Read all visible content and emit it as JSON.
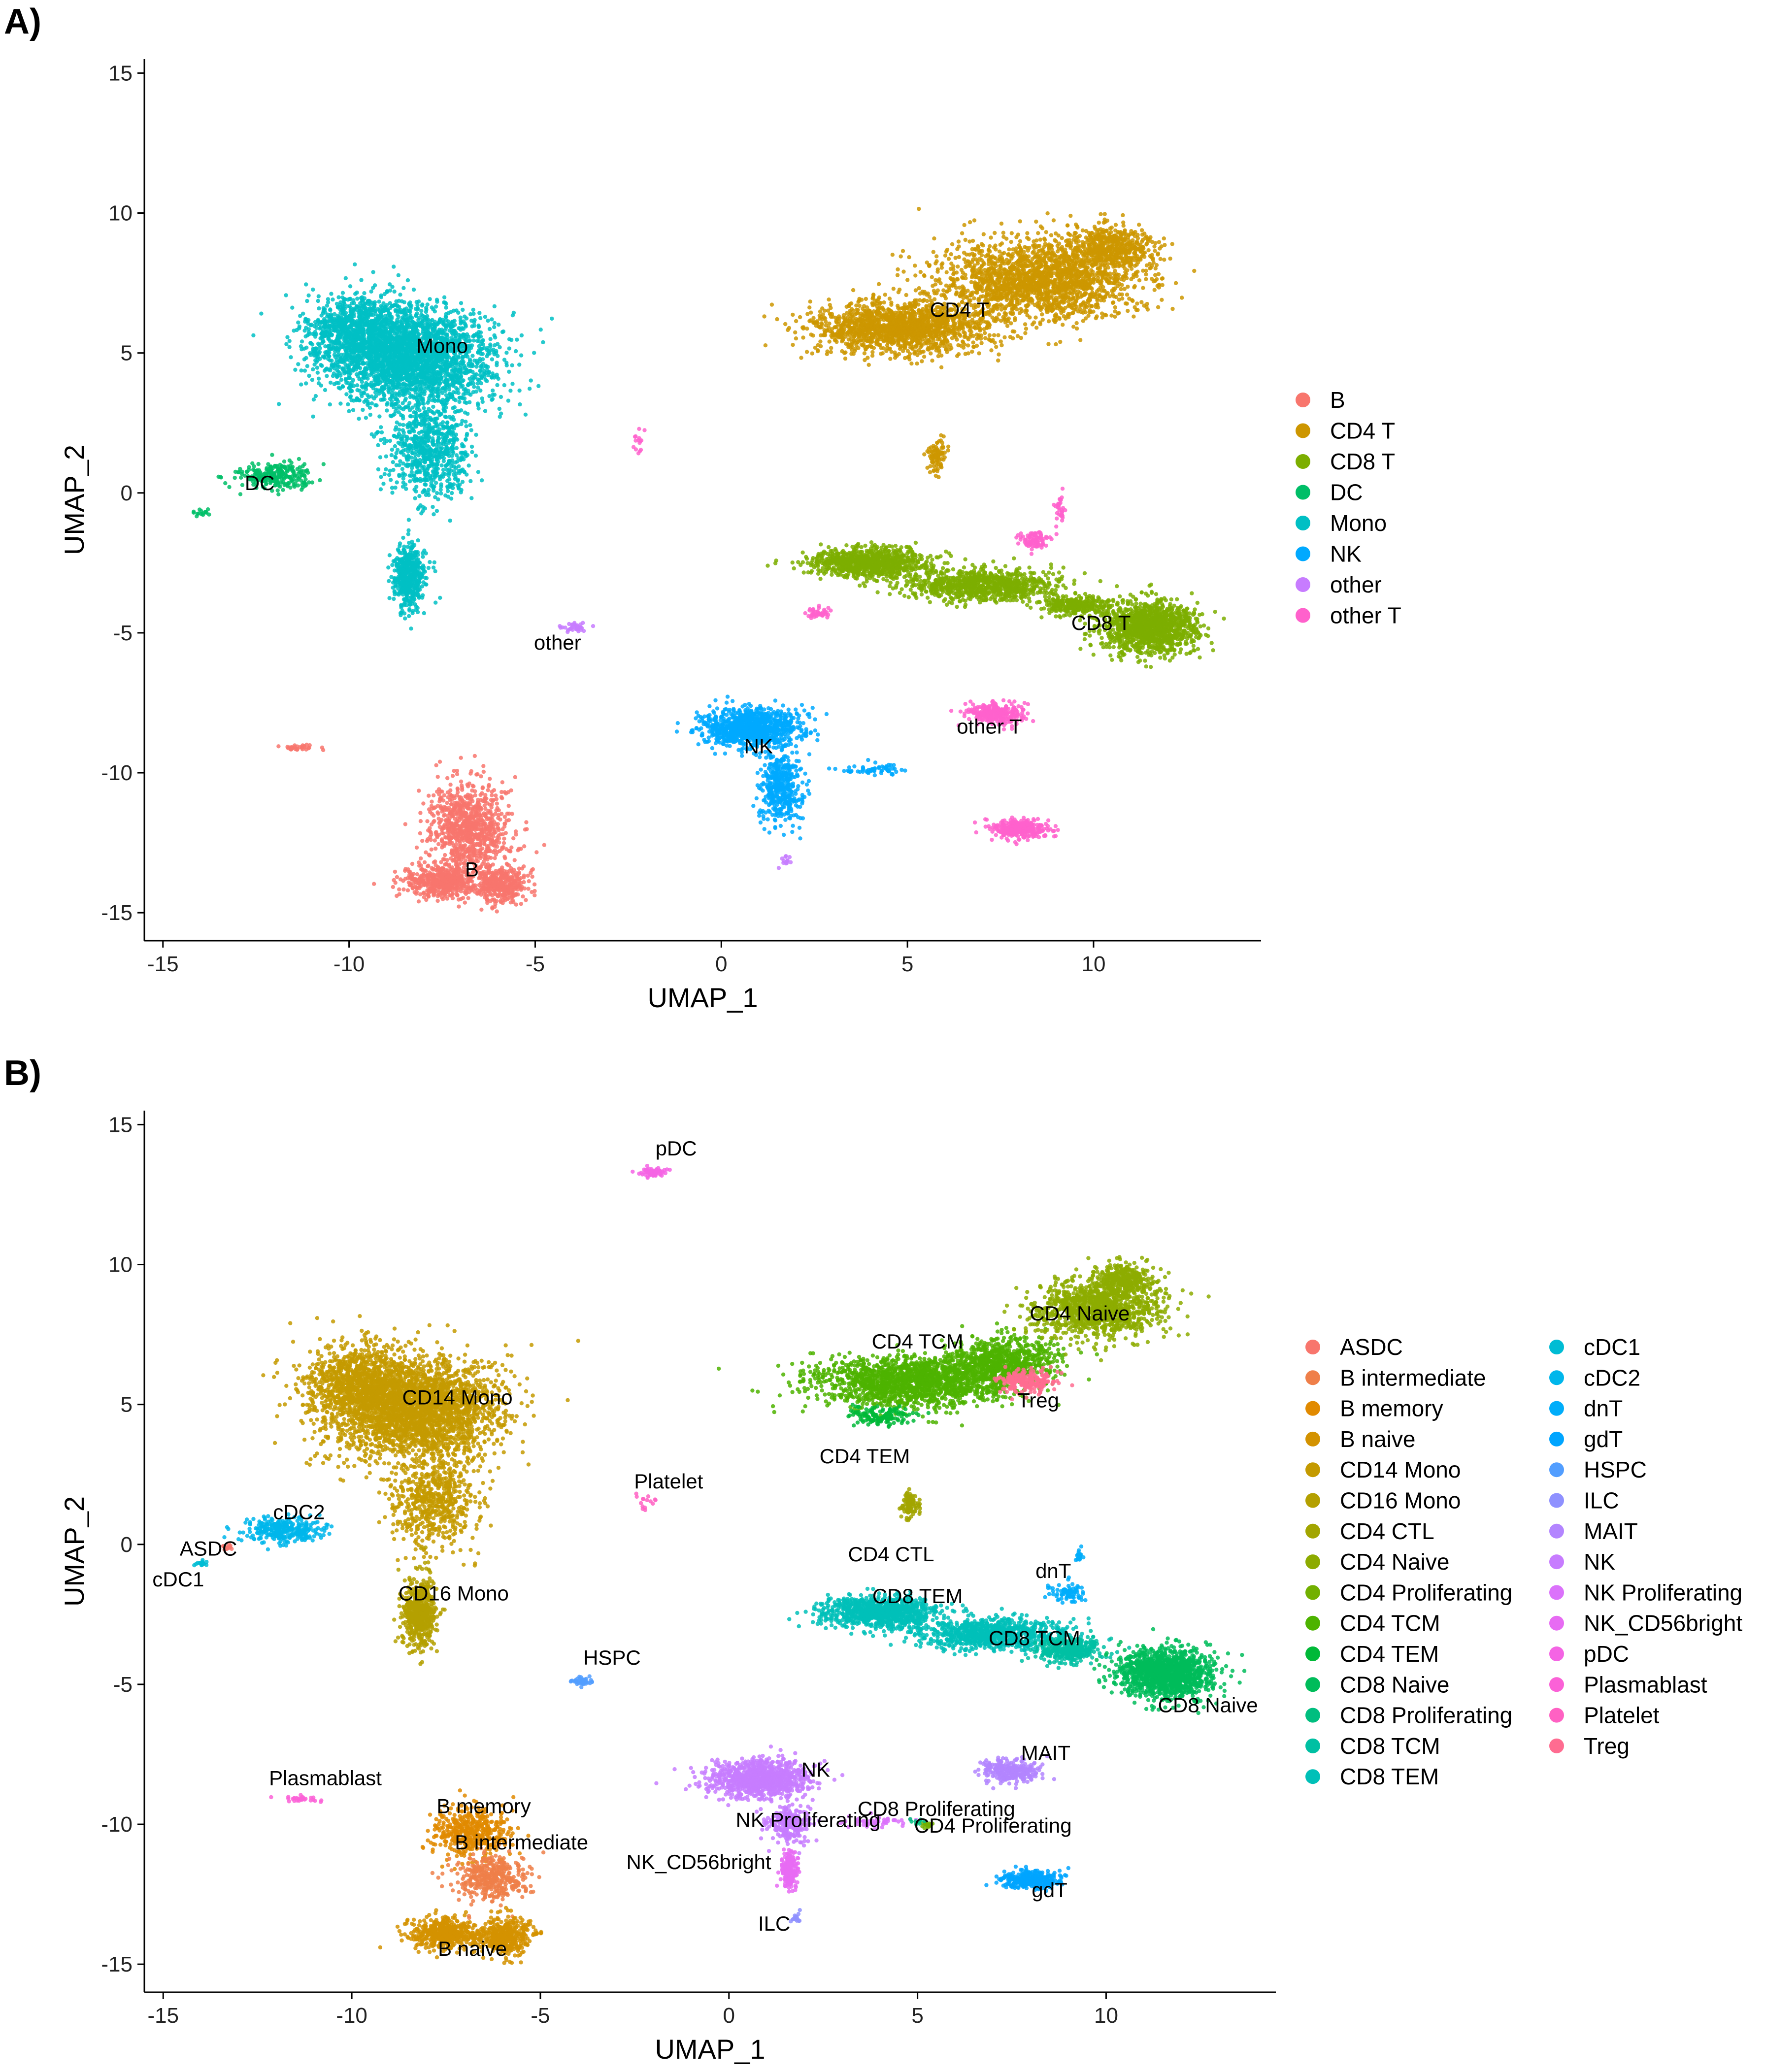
{
  "chart_data": [
    {
      "panel": "A)",
      "type": "scatter",
      "title": "",
      "xlabel": "UMAP_1",
      "ylabel": "UMAP_2",
      "xlim": [
        -15.5,
        14.5
      ],
      "ylim": [
        -16,
        15.5
      ],
      "xticks": [
        -15,
        -10,
        -5,
        0,
        5,
        10
      ],
      "yticks": [
        -15,
        -10,
        -5,
        0,
        5,
        10,
        15
      ],
      "grid": false,
      "legend_position": "right",
      "legend": [
        {
          "label": "B",
          "color": "#F8766D"
        },
        {
          "label": "CD4 T",
          "color": "#CD9600"
        },
        {
          "label": "CD8 T",
          "color": "#7CAE00"
        },
        {
          "label": "DC",
          "color": "#00BE67"
        },
        {
          "label": "Mono",
          "color": "#00BFC4"
        },
        {
          "label": "NK",
          "color": "#00A9FF"
        },
        {
          "label": "other",
          "color": "#C77CFF"
        },
        {
          "label": "other T",
          "color": "#FF61CC"
        }
      ],
      "cluster_labels": [
        {
          "text": "Mono",
          "x": -7.5,
          "y": 5.0
        },
        {
          "text": "DC",
          "x": -12.4,
          "y": 0.1
        },
        {
          "text": "CD4 T",
          "x": 6.4,
          "y": 6.3
        },
        {
          "text": "CD8 T",
          "x": 10.2,
          "y": -4.9
        },
        {
          "text": "other",
          "x": -4.4,
          "y": -5.6
        },
        {
          "text": "NK",
          "x": 1.0,
          "y": -9.3
        },
        {
          "text": "other T",
          "x": 7.2,
          "y": -8.6
        },
        {
          "text": "B",
          "x": -6.7,
          "y": -13.7
        }
      ],
      "clusters": [
        {
          "group": "Mono",
          "color": "#00BFC4",
          "blobs": [
            [
              -8.3,
              4.8,
              2.0,
              1.6,
              2600
            ],
            [
              -9.8,
              5.8,
              1.3,
              1.2,
              900
            ],
            [
              -7.8,
              1.5,
              1.0,
              1.5,
              700
            ],
            [
              -8.4,
              -3.0,
              0.4,
              1.0,
              500
            ]
          ]
        },
        {
          "group": "DC",
          "color": "#00BE67",
          "blobs": [
            [
              -12.0,
              0.6,
              0.9,
              0.4,
              260
            ],
            [
              -14.0,
              -0.7,
              0.2,
              0.1,
              15
            ]
          ]
        },
        {
          "group": "CD4 T",
          "color": "#CD9600",
          "blobs": [
            [
              4.8,
              5.9,
              2.2,
              0.8,
              1600
            ],
            [
              8.5,
              7.6,
              2.4,
              1.3,
              2000
            ],
            [
              10.5,
              8.8,
              1.0,
              0.7,
              500
            ],
            [
              5.8,
              1.3,
              0.2,
              0.5,
              90
            ]
          ]
        },
        {
          "group": "CD8 T",
          "color": "#7CAE00",
          "blobs": [
            [
              4.0,
              -2.5,
              1.4,
              0.5,
              900
            ],
            [
              7.0,
              -3.3,
              1.8,
              0.5,
              900
            ],
            [
              11.5,
              -4.8,
              1.1,
              0.8,
              1300
            ],
            [
              9.5,
              -4.0,
              0.8,
              0.3,
              300
            ]
          ]
        },
        {
          "group": "other T",
          "color": "#FF61CC",
          "blobs": [
            [
              7.4,
              -7.9,
              0.7,
              0.35,
              280
            ],
            [
              8.0,
              -12.0,
              0.7,
              0.3,
              320
            ],
            [
              8.4,
              -1.7,
              0.4,
              0.3,
              90
            ],
            [
              9.1,
              -0.6,
              0.1,
              0.6,
              30
            ],
            [
              2.6,
              -4.3,
              0.3,
              0.2,
              40
            ],
            [
              -2.2,
              1.8,
              0.2,
              0.4,
              15
            ]
          ]
        },
        {
          "group": "NK",
          "color": "#00A9FF",
          "blobs": [
            [
              0.8,
              -8.4,
              1.2,
              0.6,
              1000
            ],
            [
              1.6,
              -10.5,
              0.5,
              1.1,
              450
            ],
            [
              4.0,
              -9.9,
              0.8,
              0.2,
              60
            ]
          ]
        },
        {
          "group": "other",
          "color": "#C77CFF",
          "blobs": [
            [
              -3.9,
              -4.8,
              0.3,
              0.15,
              40
            ],
            [
              1.7,
              -13.1,
              0.1,
              0.2,
              12
            ]
          ]
        },
        {
          "group": "B",
          "color": "#F8766D",
          "blobs": [
            [
              -6.8,
              -12.0,
              1.0,
              1.5,
              900
            ],
            [
              -7.5,
              -13.9,
              0.9,
              0.5,
              500
            ],
            [
              -5.9,
              -14.0,
              0.6,
              0.6,
              400
            ],
            [
              -11.3,
              -9.1,
              0.5,
              0.1,
              30
            ]
          ]
        }
      ]
    },
    {
      "panel": "B)",
      "type": "scatter",
      "title": "",
      "xlabel": "UMAP_1",
      "ylabel": "UMAP_2",
      "xlim": [
        -15.5,
        14.5
      ],
      "ylim": [
        -16,
        15.5
      ],
      "xticks": [
        -15,
        -10,
        -5,
        0,
        5,
        10
      ],
      "yticks": [
        -15,
        -10,
        -5,
        0,
        5,
        10,
        15
      ],
      "grid": false,
      "legend_position": "right",
      "legend": [
        {
          "label": "ASDC",
          "color": "#F8766D"
        },
        {
          "label": "B intermediate",
          "color": "#EF7F49"
        },
        {
          "label": "B memory",
          "color": "#E18A00"
        },
        {
          "label": "B naive",
          "color": "#D39200"
        },
        {
          "label": "CD14 Mono",
          "color": "#C49A00"
        },
        {
          "label": "CD16 Mono",
          "color": "#B4A000"
        },
        {
          "label": "CD4 CTL",
          "color": "#A2A500"
        },
        {
          "label": "CD4 Naive",
          "color": "#8DAB00"
        },
        {
          "label": "CD4 Proliferating",
          "color": "#72B000"
        },
        {
          "label": "CD4 TCM",
          "color": "#4DB300"
        },
        {
          "label": "CD4 TEM",
          "color": "#00B938"
        },
        {
          "label": "CD8 Naive",
          "color": "#00BC5A"
        },
        {
          "label": "CD8 Proliferating",
          "color": "#00BE7F"
        },
        {
          "label": "CD8 TCM",
          "color": "#00C0A3"
        },
        {
          "label": "CD8 TEM",
          "color": "#00C0B8"
        },
        {
          "label": "cDC1",
          "color": "#00BCD4"
        },
        {
          "label": "cDC2",
          "color": "#00B6EB"
        },
        {
          "label": "dnT",
          "color": "#00ADFA"
        },
        {
          "label": "gdT",
          "color": "#00A5FF"
        },
        {
          "label": "HSPC",
          "color": "#529EFF"
        },
        {
          "label": "ILC",
          "color": "#8F91FF"
        },
        {
          "label": "MAIT",
          "color": "#B385FF"
        },
        {
          "label": "NK",
          "color": "#C77CFF"
        },
        {
          "label": "NK Proliferating",
          "color": "#DB72FB"
        },
        {
          "label": "NK_CD56bright",
          "color": "#E76BF3"
        },
        {
          "label": "pDC",
          "color": "#F464E4"
        },
        {
          "label": "Plasmablast",
          "color": "#FB61D7"
        },
        {
          "label": "Platelet",
          "color": "#FF61C3"
        },
        {
          "label": "Treg",
          "color": "#FF6C91"
        }
      ],
      "cluster_labels": [
        {
          "text": "pDC",
          "x": -1.4,
          "y": 13.9
        },
        {
          "text": "CD14 Mono",
          "x": -7.2,
          "y": 5.0
        },
        {
          "text": "CD4 TCM",
          "x": 5.0,
          "y": 7.0
        },
        {
          "text": "CD4 Naive",
          "x": 9.3,
          "y": 8.0
        },
        {
          "text": "Treg",
          "x": 8.2,
          "y": 4.9
        },
        {
          "text": "CD4 TEM",
          "x": 3.6,
          "y": 2.9
        },
        {
          "text": "Platelet",
          "x": -1.6,
          "y": 2.0
        },
        {
          "text": "cDC2",
          "x": -11.4,
          "y": 0.9
        },
        {
          "text": "CD4 CTL",
          "x": 4.3,
          "y": -0.6
        },
        {
          "text": "ASDC",
          "x": -13.8,
          "y": -0.4
        },
        {
          "text": "cDC1",
          "x": -14.6,
          "y": -1.5
        },
        {
          "text": "CD16 Mono",
          "x": -7.3,
          "y": -2.0
        },
        {
          "text": "dnT",
          "x": 8.6,
          "y": -1.2
        },
        {
          "text": "CD8 TEM",
          "x": 5.0,
          "y": -2.1
        },
        {
          "text": "CD8 TCM",
          "x": 8.1,
          "y": -3.6
        },
        {
          "text": "HSPC",
          "x": -3.1,
          "y": -4.3
        },
        {
          "text": "CD8 Naive",
          "x": 12.7,
          "y": -6.0
        },
        {
          "text": "MAIT",
          "x": 8.4,
          "y": -7.7
        },
        {
          "text": "NK",
          "x": 2.3,
          "y": -8.3
        },
        {
          "text": "Plasmablast",
          "x": -10.7,
          "y": -8.6
        },
        {
          "text": "B memory",
          "x": -6.5,
          "y": -9.6
        },
        {
          "text": "CD8 Proliferating",
          "x": 5.5,
          "y": -9.7
        },
        {
          "text": "NK Proliferating",
          "x": 2.1,
          "y": -10.1
        },
        {
          "text": "CD4 Proliferating",
          "x": 7.0,
          "y": -10.3
        },
        {
          "text": "B intermediate",
          "x": -5.5,
          "y": -10.9
        },
        {
          "text": "NK_CD56bright",
          "x": -0.8,
          "y": -11.6
        },
        {
          "text": "gdT",
          "x": 8.5,
          "y": -12.6
        },
        {
          "text": "ILC",
          "x": 1.2,
          "y": -13.8
        },
        {
          "text": "B naive",
          "x": -6.8,
          "y": -14.7
        }
      ],
      "clusters": [
        {
          "group": "CD14 Mono",
          "color": "#C49A00",
          "blobs": [
            [
              -8.3,
              4.8,
              2.0,
              1.6,
              2600
            ],
            [
              -9.8,
              5.8,
              1.3,
              1.2,
              900
            ],
            [
              -7.8,
              1.5,
              1.0,
              1.5,
              600
            ]
          ]
        },
        {
          "group": "CD16 Mono",
          "color": "#B4A000",
          "blobs": [
            [
              -8.2,
              -2.4,
              0.4,
              1.1,
              550
            ]
          ]
        },
        {
          "group": "cDC2",
          "color": "#00B6EB",
          "blobs": [
            [
              -11.8,
              0.5,
              1.0,
              0.4,
              300
            ]
          ]
        },
        {
          "group": "ASDC",
          "color": "#F8766D",
          "blobs": [
            [
              -13.3,
              -0.1,
              0.15,
              0.1,
              12
            ]
          ]
        },
        {
          "group": "cDC1",
          "color": "#00BCD4",
          "blobs": [
            [
              -14.0,
              -0.7,
              0.15,
              0.1,
              15
            ]
          ]
        },
        {
          "group": "pDC",
          "color": "#F464E4",
          "blobs": [
            [
              -2.0,
              13.3,
              0.3,
              0.15,
              70
            ]
          ]
        },
        {
          "group": "Platelet",
          "color": "#FF61C3",
          "blobs": [
            [
              -2.2,
              1.5,
              0.3,
              0.3,
              15
            ]
          ]
        },
        {
          "group": "HSPC",
          "color": "#529EFF",
          "blobs": [
            [
              -3.9,
              -4.9,
              0.3,
              0.15,
              40
            ]
          ]
        },
        {
          "group": "Plasmablast",
          "color": "#FB61D7",
          "blobs": [
            [
              -11.3,
              -9.1,
              0.5,
              0.1,
              30
            ]
          ]
        },
        {
          "group": "CD4 TCM",
          "color": "#4DB300",
          "blobs": [
            [
              4.8,
              5.8,
              2.2,
              0.8,
              1600
            ],
            [
              7.3,
              6.5,
              1.3,
              0.8,
              800
            ]
          ]
        },
        {
          "group": "CD4 Naive",
          "color": "#8DAB00",
          "blobs": [
            [
              9.8,
              8.4,
              1.5,
              0.9,
              1200
            ],
            [
              10.5,
              9.5,
              0.7,
              0.5,
              300
            ]
          ]
        },
        {
          "group": "Treg",
          "color": "#FF6C91",
          "blobs": [
            [
              7.9,
              5.8,
              0.7,
              0.4,
              220
            ]
          ]
        },
        {
          "group": "CD4 TEM",
          "color": "#00B938",
          "blobs": [
            [
              4.0,
              4.6,
              0.7,
              0.3,
              150
            ]
          ]
        },
        {
          "group": "CD4 CTL",
          "color": "#A2A500",
          "blobs": [
            [
              4.8,
              1.4,
              0.2,
              0.4,
              90
            ]
          ]
        },
        {
          "group": "CD8 TEM",
          "color": "#00C0B8",
          "blobs": [
            [
              4.0,
              -2.4,
              1.4,
              0.5,
              900
            ],
            [
              7.0,
              -3.2,
              1.8,
              0.5,
              900
            ]
          ]
        },
        {
          "group": "CD8 TCM",
          "color": "#00C0A3",
          "blobs": [
            [
              9.0,
              -3.8,
              0.8,
              0.4,
              350
            ]
          ]
        },
        {
          "group": "dnT",
          "color": "#00ADFA",
          "blobs": [
            [
              9.0,
              -1.7,
              0.4,
              0.3,
              80
            ],
            [
              9.3,
              -0.4,
              0.1,
              0.3,
              20
            ]
          ]
        },
        {
          "group": "CD8 Naive",
          "color": "#00BC5A",
          "blobs": [
            [
              11.6,
              -4.6,
              1.1,
              0.8,
              1300
            ]
          ]
        },
        {
          "group": "MAIT",
          "color": "#B385FF",
          "blobs": [
            [
              7.5,
              -8.1,
              0.7,
              0.35,
              280
            ]
          ]
        },
        {
          "group": "gdT",
          "color": "#00A5FF",
          "blobs": [
            [
              8.0,
              -12.0,
              0.7,
              0.3,
              320
            ]
          ]
        },
        {
          "group": "NK",
          "color": "#C77CFF",
          "blobs": [
            [
              0.8,
              -8.4,
              1.2,
              0.6,
              1000
            ],
            [
              1.6,
              -10.0,
              0.5,
              0.6,
              250
            ]
          ]
        },
        {
          "group": "NK_CD56bright",
          "color": "#E76BF3",
          "blobs": [
            [
              1.6,
              -11.6,
              0.2,
              0.6,
              200
            ]
          ]
        },
        {
          "group": "NK Proliferating",
          "color": "#DB72FB",
          "blobs": [
            [
              4.0,
              -9.9,
              0.8,
              0.2,
              50
            ]
          ]
        },
        {
          "group": "CD4 Proliferating",
          "color": "#72B000",
          "blobs": [
            [
              5.3,
              -10.0,
              0.2,
              0.1,
              20
            ]
          ]
        },
        {
          "group": "CD8 Proliferating",
          "color": "#00BE7F",
          "blobs": [
            [
              5.0,
              -9.9,
              0.15,
              0.1,
              10
            ]
          ]
        },
        {
          "group": "ILC",
          "color": "#8F91FF",
          "blobs": [
            [
              1.8,
              -13.3,
              0.1,
              0.2,
              15
            ]
          ]
        },
        {
          "group": "B memory",
          "color": "#E18A00",
          "blobs": [
            [
              -6.8,
              -10.3,
              0.9,
              0.8,
              450
            ]
          ]
        },
        {
          "group": "B intermediate",
          "color": "#EF7F49",
          "blobs": [
            [
              -6.3,
              -11.9,
              0.9,
              0.7,
              400
            ]
          ]
        },
        {
          "group": "B naive",
          "color": "#D39200",
          "blobs": [
            [
              -7.5,
              -13.9,
              0.9,
              0.5,
              500
            ],
            [
              -5.9,
              -14.0,
              0.6,
              0.6,
              400
            ]
          ]
        }
      ]
    }
  ]
}
